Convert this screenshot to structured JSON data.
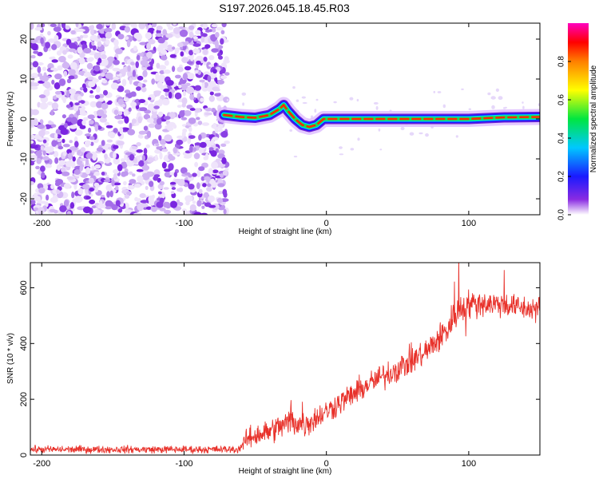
{
  "title": "S197.2026.045.18.45.R03",
  "chart_data": [
    {
      "type": "heatmap",
      "xlabel": "Height of straight line (km)",
      "ylabel": "Frequency (Hz)",
      "xlim": [
        -208,
        150
      ],
      "ylim": [
        -24,
        24
      ],
      "xticks": [
        -200,
        -100,
        0,
        100
      ],
      "yticks": [
        -20,
        -10,
        0,
        10,
        20
      ],
      "noise_region_x": [
        -208,
        -72
      ],
      "signal_start_x": -72,
      "signal_track": [
        {
          "x": -72,
          "f": 1.0
        },
        {
          "x": -60,
          "f": 0.5
        },
        {
          "x": -50,
          "f": 0.3
        },
        {
          "x": -40,
          "f": 1.0
        },
        {
          "x": -33,
          "f": 2.5
        },
        {
          "x": -30,
          "f": 3.5
        },
        {
          "x": -27,
          "f": 2.0
        },
        {
          "x": -22,
          "f": 0.0
        },
        {
          "x": -17,
          "f": -1.5
        },
        {
          "x": -12,
          "f": -2.0
        },
        {
          "x": -7,
          "f": -1.5
        },
        {
          "x": -2,
          "f": 0.0
        },
        {
          "x": 10,
          "f": 0.0
        },
        {
          "x": 60,
          "f": 0.0
        },
        {
          "x": 100,
          "f": 0.0
        },
        {
          "x": 125,
          "f": 0.4
        },
        {
          "x": 150,
          "f": 0.5
        }
      ],
      "colorbar": {
        "label": "Normalized spectral amplitude",
        "range": [
          0,
          1
        ],
        "ticks": [
          0.0,
          0.2,
          0.4,
          0.6,
          0.8
        ],
        "tick_labels": [
          "0.0",
          "0.2",
          "0.4",
          "0.6",
          "0.8"
        ]
      }
    },
    {
      "type": "line",
      "xlabel": "Height of straight line (km)",
      "ylabel": "SNR (10 * v/v)",
      "xlim": [
        -208,
        150
      ],
      "ylim": [
        0,
        690
      ],
      "xticks": [
        -200,
        -100,
        0,
        100
      ],
      "yticks": [
        0,
        200,
        400,
        600
      ],
      "series": [
        {
          "name": "SNR",
          "color": "#e8312a",
          "x": [
            -208,
            -150,
            -100,
            -75,
            -62,
            -55,
            -40,
            -25,
            -15,
            -5,
            10,
            30,
            50,
            70,
            85,
            92,
            100,
            110,
            125,
            140,
            150
          ],
          "values": [
            20,
            20,
            20,
            20,
            20,
            60,
            85,
            120,
            110,
            140,
            190,
            255,
            310,
            370,
            450,
            520,
            540,
            545,
            540,
            525,
            525
          ],
          "noise_amplitude": [
            12,
            12,
            12,
            12,
            12,
            35,
            40,
            45,
            45,
            40,
            40,
            40,
            45,
            45,
            50,
            55,
            45,
            45,
            40,
            40,
            40
          ]
        }
      ]
    }
  ]
}
